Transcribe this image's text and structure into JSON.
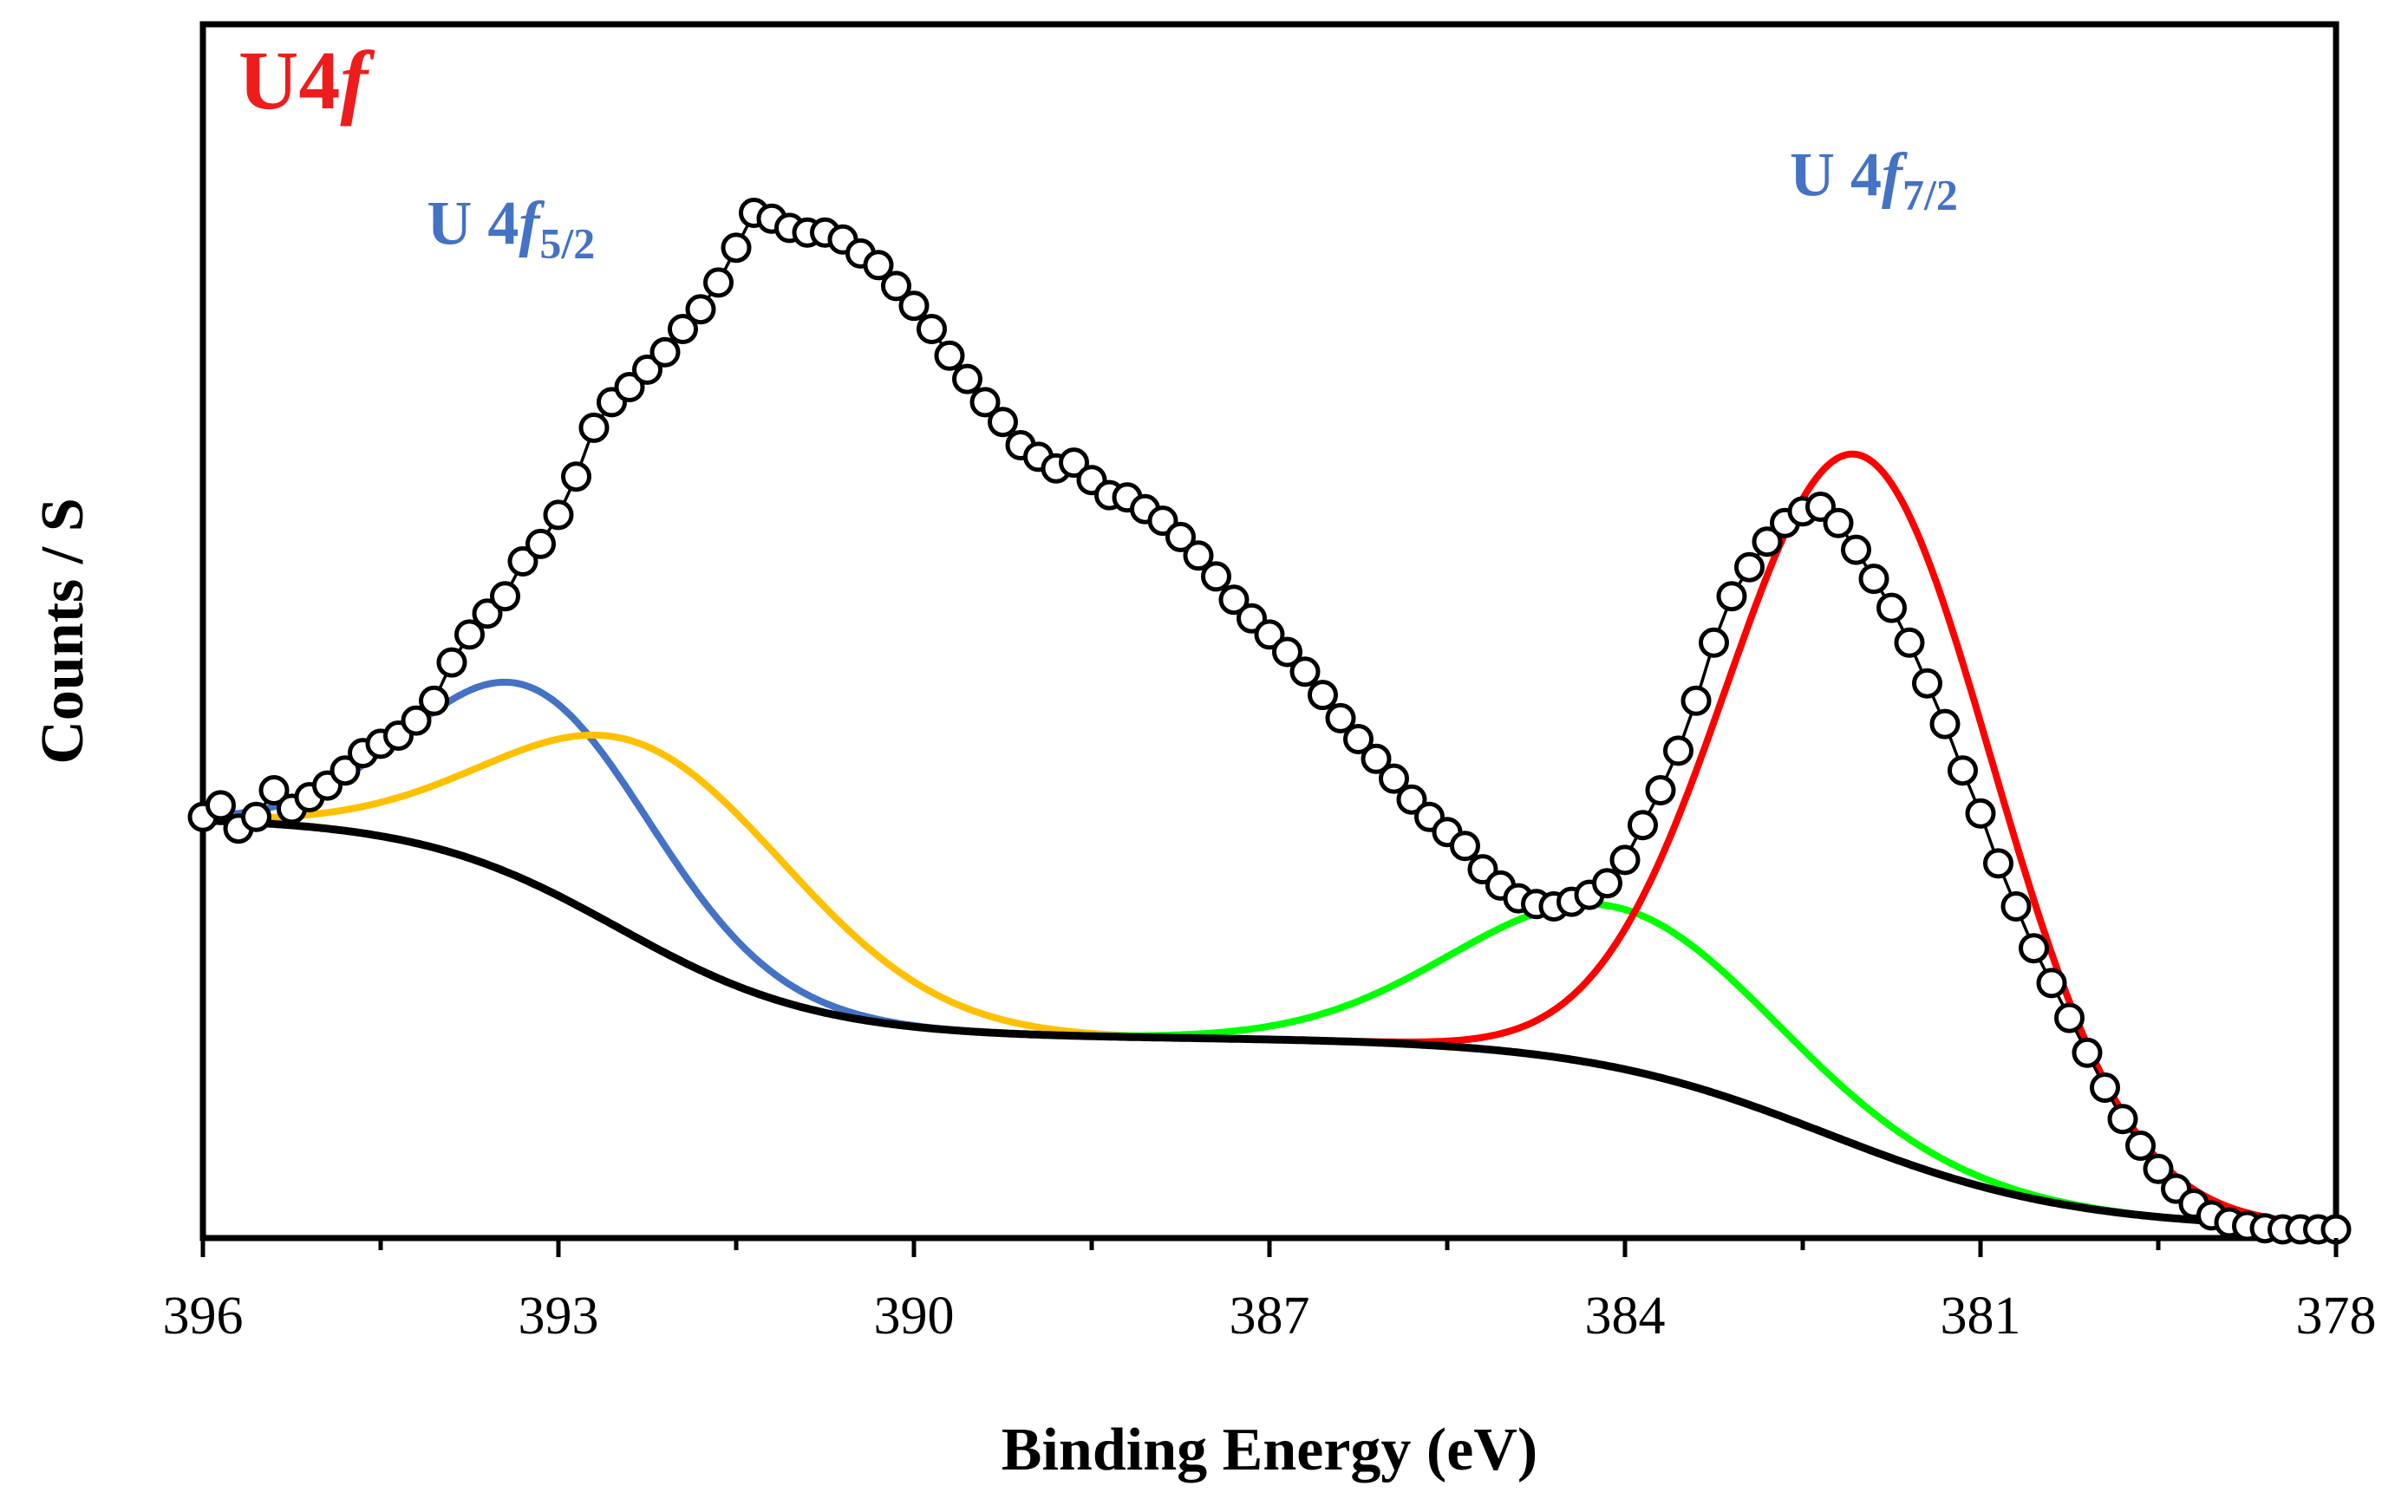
{
  "chart_data": {
    "type": "scatter",
    "xlabel": "Binding Energy (eV)",
    "ylabel": "Counts / S",
    "xlim": [
      396,
      378
    ],
    "x_reversed": true,
    "ylim": [
      0,
      1000
    ],
    "x_ticks": [
      396,
      393,
      390,
      387,
      384,
      381,
      378
    ],
    "x_ticks_minor": [
      394.5,
      391.5,
      388.5,
      385.5,
      382.5,
      379.5
    ],
    "y_ticks_shown": false,
    "grid": false,
    "legend": "none",
    "annotations": [
      {
        "id": "panel",
        "main": "U4",
        "italic": "f",
        "sub": "",
        "x": 395.7,
        "y": 965,
        "color": "#ee1c1c",
        "size": 96
      },
      {
        "id": "f52",
        "main": "U 4",
        "italic": "f",
        "sub": "5/2",
        "x": 393.4,
        "y": 848,
        "color": "#4472c4",
        "size": 72
      },
      {
        "id": "f72",
        "main": "U 4",
        "italic": "f",
        "sub": "7/2",
        "x": 381.9,
        "y": 890,
        "color": "#4472c4",
        "size": 72
      }
    ],
    "series": [
      {
        "name": "",
        "kind": "markers",
        "color": "#000000",
        "x": [
          396.0,
          395.85,
          395.7,
          395.55,
          395.4,
          395.25,
          395.1,
          394.95,
          394.8,
          394.65,
          394.5,
          394.35,
          394.2,
          394.05,
          393.9,
          393.75,
          393.6,
          393.45,
          393.3,
          393.15,
          393.0,
          392.85,
          392.7,
          392.55,
          392.4,
          392.25,
          392.1,
          391.95,
          391.8,
          391.65,
          391.5,
          391.35,
          391.2,
          391.05,
          390.9,
          390.75,
          390.6,
          390.45,
          390.3,
          390.15,
          390.0,
          389.85,
          389.7,
          389.55,
          389.4,
          389.25,
          389.1,
          388.95,
          388.8,
          388.65,
          388.5,
          388.35,
          388.2,
          388.05,
          387.9,
          387.75,
          387.6,
          387.45,
          387.3,
          387.15,
          387.0,
          386.85,
          386.7,
          386.55,
          386.4,
          386.25,
          386.1,
          385.95,
          385.8,
          385.65,
          385.5,
          385.35,
          385.2,
          385.05,
          384.9,
          384.75,
          384.6,
          384.45,
          384.3,
          384.15,
          384.0,
          383.85,
          383.7,
          383.55,
          383.4,
          383.25,
          383.1,
          382.95,
          382.8,
          382.65,
          382.5,
          382.35,
          382.2,
          382.05,
          381.9,
          381.75,
          381.6,
          381.45,
          381.3,
          381.15,
          381.0,
          380.85,
          380.7,
          380.55,
          380.4,
          380.25,
          380.1,
          379.95,
          379.8,
          379.65,
          379.5,
          379.35,
          379.2,
          379.05,
          378.9,
          378.75,
          378.6,
          378.45,
          378.3,
          378.15,
          378.0
        ],
        "y": [
          355,
          365,
          345,
          355,
          378,
          362,
          372,
          382,
          395,
          410,
          418,
          425,
          438,
          455,
          488,
          512,
          530,
          545,
          575,
          590,
          615,
          648,
          690,
          712,
          725,
          740,
          755,
          775,
          792,
          815,
          845,
          875,
          870,
          862,
          858,
          858,
          852,
          840,
          830,
          812,
          795,
          775,
          752,
          732,
          712,
          695,
          675,
          665,
          655,
          660,
          645,
          632,
          630,
          620,
          610,
          596,
          580,
          562,
          542,
          526,
          512,
          497,
          480,
          460,
          440,
          422,
          405,
          388,
          370,
          355,
          342,
          330,
          310,
          296,
          285,
          280,
          278,
          282,
          288,
          298,
          318,
          348,
          378,
          412,
          455,
          505,
          545,
          570,
          592,
          608,
          618,
          622,
          608,
          585,
          560,
          535,
          505,
          470,
          435,
          395,
          358,
          315,
          278,
          242,
          212,
          182,
          152,
          122,
          95,
          72,
          52,
          35,
          22,
          12,
          6,
          3,
          1,
          0,
          0,
          0,
          0
        ]
      },
      {
        "name": "",
        "kind": "line",
        "color": "#4472c4",
        "model": "gauss",
        "center": 393.2,
        "amplitude": 168,
        "sigma": 1.0
      },
      {
        "name": "",
        "kind": "line",
        "color": "#ffc000",
        "model": "gauss",
        "center": 392.15,
        "amplitude": 170,
        "sigma": 1.25
      },
      {
        "name": "",
        "kind": "line",
        "color": "#00ff00",
        "model": "gauss",
        "center": 384.1,
        "amplitude": 138,
        "sigma": 1.3
      },
      {
        "name": "",
        "kind": "line",
        "color": "#ff0000",
        "model": "gauss",
        "center": 382.0,
        "amplitude": 595,
        "sigma": 1.12
      },
      {
        "name": "",
        "kind": "line",
        "color": "#000000",
        "model": "background"
      }
    ],
    "background_model": {
      "plateau_high": 355,
      "plateau_mid": 165,
      "floor": 0,
      "step1_center": 392.5,
      "step1_width": 0.85,
      "step2_center": 382.3,
      "step2_width": 1.05
    }
  }
}
